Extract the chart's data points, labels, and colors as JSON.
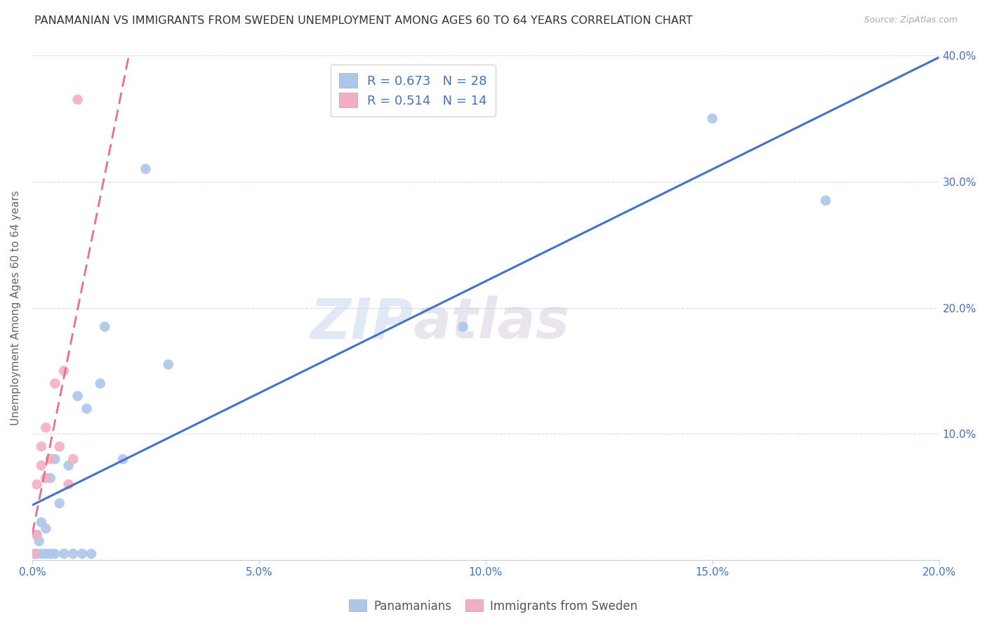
{
  "title": "PANAMANIAN VS IMMIGRANTS FROM SWEDEN UNEMPLOYMENT AMONG AGES 60 TO 64 YEARS CORRELATION CHART",
  "source": "Source: ZipAtlas.com",
  "ylabel": "Unemployment Among Ages 60 to 64 years",
  "xmin": 0.0,
  "xmax": 0.2,
  "ymin": 0.0,
  "ymax": 0.4,
  "xticks": [
    0.0,
    0.05,
    0.1,
    0.15,
    0.2
  ],
  "yticks": [
    0.1,
    0.2,
    0.3,
    0.4
  ],
  "blue_R": 0.673,
  "blue_N": 28,
  "pink_R": 0.514,
  "pink_N": 14,
  "blue_color": "#adc6ea",
  "pink_color": "#f2afc0",
  "blue_line_color": "#4472c4",
  "pink_line_color": "#e8708a",
  "blue_scatter_x": [
    0.0005,
    0.001,
    0.001,
    0.0015,
    0.002,
    0.002,
    0.003,
    0.003,
    0.004,
    0.004,
    0.005,
    0.005,
    0.006,
    0.007,
    0.008,
    0.009,
    0.01,
    0.011,
    0.012,
    0.013,
    0.015,
    0.016,
    0.02,
    0.025,
    0.03,
    0.095,
    0.15,
    0.175
  ],
  "blue_scatter_y": [
    0.005,
    0.005,
    0.02,
    0.015,
    0.005,
    0.03,
    0.005,
    0.025,
    0.005,
    0.065,
    0.005,
    0.08,
    0.045,
    0.005,
    0.075,
    0.005,
    0.13,
    0.005,
    0.12,
    0.005,
    0.14,
    0.185,
    0.08,
    0.31,
    0.155,
    0.185,
    0.35,
    0.285
  ],
  "pink_scatter_x": [
    0.0005,
    0.001,
    0.001,
    0.002,
    0.002,
    0.003,
    0.003,
    0.004,
    0.005,
    0.006,
    0.007,
    0.008,
    0.009,
    0.01
  ],
  "pink_scatter_y": [
    0.005,
    0.02,
    0.06,
    0.075,
    0.09,
    0.065,
    0.105,
    0.08,
    0.14,
    0.09,
    0.15,
    0.06,
    0.08,
    0.365
  ],
  "watermark_zip": "ZIP",
  "watermark_atlas": "atlas",
  "title_fontsize": 11.5,
  "axis_label_fontsize": 11,
  "tick_fontsize": 11,
  "source_fontsize": 9
}
